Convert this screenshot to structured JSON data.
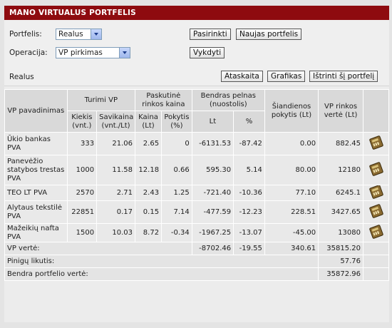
{
  "title": "MANO VIRTUALUS PORTFELIS",
  "form": {
    "portfolio_label": "Portfelis:",
    "portfolio_value": "Realus",
    "select_btn": "Pasirinkti",
    "new_btn": "Naujas portfelis",
    "operation_label": "Operacija:",
    "operation_value": "VP pirkimas",
    "execute_btn": "Vykdyti"
  },
  "portfolio_bar": {
    "name": "Realus",
    "report_btn": "Ataskaita",
    "charts_btn": "Grafikas",
    "delete_btn": "Ištrinti šį portfelį"
  },
  "table": {
    "headers": {
      "name": "VP pavadinimas",
      "holdings": "Turimi VP",
      "qty": "Kiekis (vnt.)",
      "cost": "Savikaina (vnt./Lt)",
      "last_price": "Paskutinė rinkos kaina",
      "price": "Kaina (Lt)",
      "change": "Pokytis (%)",
      "profit": "Bendras pelnas (nuostolis)",
      "profit_lt": "Lt",
      "profit_pct": "%",
      "today": "Šiandienos pokytis (Lt)",
      "market_value": "VP rinkos vertė (Lt)"
    },
    "rows": [
      {
        "name": "Ūkio bankas PVA",
        "qty": "333",
        "cost": "21.06",
        "price": "2.65",
        "change": "0",
        "profit_lt": "-6131.53",
        "profit_pct": "-87.42",
        "today": "0.00",
        "value": "882.45"
      },
      {
        "name": "Panevėžio statybos trestas PVA",
        "qty": "1000",
        "cost": "11.58",
        "price": "12.18",
        "change": "0.66",
        "profit_lt": "595.30",
        "profit_pct": "5.14",
        "today": "80.00",
        "value": "12180"
      },
      {
        "name": "TEO LT PVA",
        "qty": "2570",
        "cost": "2.71",
        "price": "2.43",
        "change": "1.25",
        "profit_lt": "-721.40",
        "profit_pct": "-10.36",
        "today": "77.10",
        "value": "6245.1"
      },
      {
        "name": "Alytaus tekstilė PVA",
        "qty": "22851",
        "cost": "0.17",
        "price": "0.15",
        "change": "7.14",
        "profit_lt": "-477.59",
        "profit_pct": "-12.23",
        "today": "228.51",
        "value": "3427.65"
      },
      {
        "name": "Mažeikių nafta PVA",
        "qty": "1500",
        "cost": "10.03",
        "price": "8.72",
        "change": "-0.34",
        "profit_lt": "-1967.25",
        "profit_pct": "-13.07",
        "today": "-45.00",
        "value": "13080"
      }
    ],
    "summary": {
      "vp_label": "VP vertė:",
      "vp_profit_lt": "-8702.46",
      "vp_profit_pct": "-19.55",
      "vp_today": "340.61",
      "vp_value": "35815.20",
      "cash_label": "Pinigų likutis:",
      "cash_value": "57.76",
      "total_label": "Bendra portfelio vertė:",
      "total_value": "35872.96"
    }
  },
  "icon": "calculator-icon"
}
